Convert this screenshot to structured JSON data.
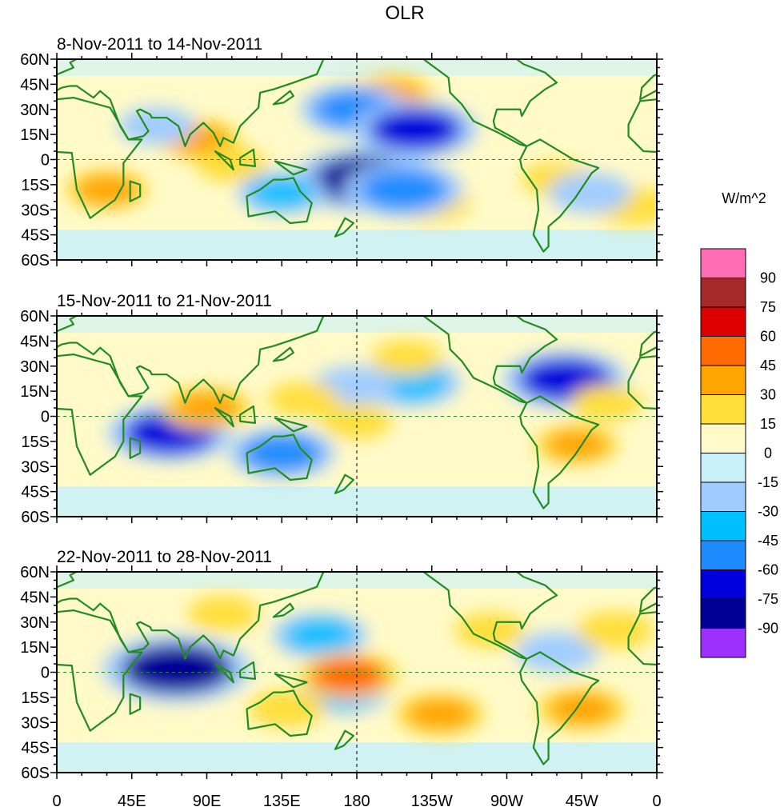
{
  "chart_data": {
    "type": "heatmap",
    "title": "OLR",
    "units": "W/m^2",
    "x_ticks": [
      "0",
      "45E",
      "90E",
      "135E",
      "180",
      "135W",
      "90W",
      "45W",
      "0"
    ],
    "y_ticks": [
      "60N",
      "45N",
      "30N",
      "15N",
      "0",
      "15S",
      "30S",
      "45S",
      "60S"
    ],
    "x_range_deg_east": [
      0,
      360
    ],
    "y_range_deg": [
      -60,
      60
    ],
    "reference_lines": [
      "equator",
      "180"
    ],
    "colorbar": {
      "labels": [
        "90",
        "75",
        "60",
        "45",
        "30",
        "15",
        "0",
        "-15",
        "-30",
        "-45",
        "-60",
        "-75",
        "-90"
      ],
      "colors": [
        "#ff6eb4",
        "#a52a2a",
        "#dd0000",
        "#ff6a00",
        "#ffa500",
        "#ffde3a",
        "#fffac8",
        "#c8f0fa",
        "#a0cdff",
        "#00bfff",
        "#1e8cff",
        "#0000dc",
        "#000096",
        "#9b30ff"
      ]
    },
    "panels": [
      {
        "label": "8-Nov-2011 to 14-Nov-2011",
        "anomalies": [
          {
            "lon": 30,
            "lat": -18,
            "value": 30
          },
          {
            "lon": 85,
            "lat": 12,
            "value": 30
          },
          {
            "lon": 105,
            "lat": -3,
            "value": 20
          },
          {
            "lon": 200,
            "lat": 38,
            "value": 35
          },
          {
            "lon": 225,
            "lat": -26,
            "value": 25
          },
          {
            "lon": 300,
            "lat": -12,
            "value": 20
          },
          {
            "lon": 345,
            "lat": -28,
            "value": 25
          },
          {
            "lon": 185,
            "lat": -12,
            "value": -80
          },
          {
            "lon": 208,
            "lat": -18,
            "value": -60
          },
          {
            "lon": 178,
            "lat": 30,
            "value": -50
          },
          {
            "lon": 215,
            "lat": 18,
            "value": -65
          },
          {
            "lon": 135,
            "lat": -20,
            "value": -35
          },
          {
            "lon": 320,
            "lat": -20,
            "value": -30
          },
          {
            "lon": 60,
            "lat": 20,
            "value": -25
          }
        ]
      },
      {
        "label": "15-Nov-2011 to 21-Nov-2011",
        "anomalies": [
          {
            "lon": 68,
            "lat": -10,
            "value": -65
          },
          {
            "lon": 135,
            "lat": -22,
            "value": -50
          },
          {
            "lon": 305,
            "lat": 22,
            "value": -65
          },
          {
            "lon": 212,
            "lat": 20,
            "value": -45
          },
          {
            "lon": 178,
            "lat": 18,
            "value": -30
          },
          {
            "lon": 90,
            "lat": 5,
            "value": 35
          },
          {
            "lon": 180,
            "lat": -3,
            "value": 20
          },
          {
            "lon": 210,
            "lat": 35,
            "value": 20
          },
          {
            "lon": 312,
            "lat": -17,
            "value": 30
          },
          {
            "lon": 148,
            "lat": 10,
            "value": 20
          },
          {
            "lon": 330,
            "lat": 8,
            "value": 20
          }
        ]
      },
      {
        "label": "22-Nov-2011 to 28-Nov-2011",
        "anomalies": [
          {
            "lon": 72,
            "lat": 2,
            "value": -85
          },
          {
            "lon": 172,
            "lat": -12,
            "value": -35
          },
          {
            "lon": 158,
            "lat": 22,
            "value": -40
          },
          {
            "lon": 300,
            "lat": 12,
            "value": -30
          },
          {
            "lon": 175,
            "lat": -2,
            "value": 45
          },
          {
            "lon": 230,
            "lat": -25,
            "value": 35
          },
          {
            "lon": 315,
            "lat": -22,
            "value": 35
          },
          {
            "lon": 138,
            "lat": -22,
            "value": 25
          },
          {
            "lon": 335,
            "lat": 25,
            "value": 25
          },
          {
            "lon": 260,
            "lat": 25,
            "value": 20
          },
          {
            "lon": 100,
            "lat": 35,
            "value": 20
          }
        ]
      }
    ]
  }
}
